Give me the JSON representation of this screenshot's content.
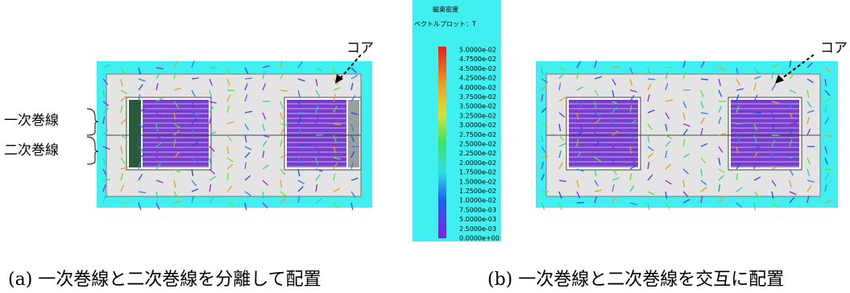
{
  "panel_a": {
    "core_label": "コア",
    "primary_label": "一次巻線",
    "secondary_label": "二次巻線",
    "caption": "(a) 一次巻線と二次巻線を分離して配置"
  },
  "panel_b": {
    "core_label": "コア",
    "caption": "(b) 一次巻線と二次巻線を交互に配置"
  },
  "colorbar": {
    "title": "磁束密度",
    "subtitle": "ベクトルプロット：T",
    "labels": [
      "5.0000e-02",
      "4.7500e-02",
      "4.5000e-02",
      "4.2500e-02",
      "4.0000e-02",
      "3.7500e-02",
      "3.5000e-02",
      "3.2500e-02",
      "3.0000e-02",
      "2.7500e-02",
      "2.5000e-02",
      "2.2500e-02",
      "2.0000e-02",
      "1.7500e-02",
      "1.5000e-02",
      "1.2500e-02",
      "1.0000e-02",
      "7.5000e-03",
      "5.0000e-03",
      "2.5000e-03",
      "0.0000e+00"
    ]
  }
}
